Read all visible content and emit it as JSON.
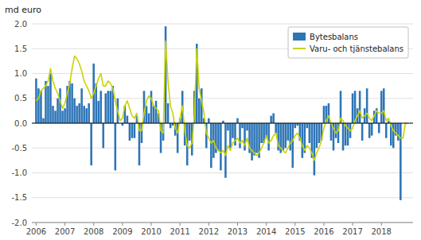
{
  "chart_data": {
    "type": "bar",
    "ylabel": "md euro",
    "x": [
      2006,
      2006.0833333333333,
      2006.1666666666667,
      2006.25,
      2006.3333333333333,
      2006.4166666666667,
      2006.5,
      2006.5833333333333,
      2006.6666666666667,
      2006.75,
      2006.8333333333333,
      2006.9166666666667,
      2007,
      2007.0833333333333,
      2007.1666666666667,
      2007.25,
      2007.3333333333333,
      2007.4166666666667,
      2007.5,
      2007.5833333333333,
      2007.6666666666667,
      2007.75,
      2007.8333333333333,
      2007.9166666666667,
      2008,
      2008.0833333333333,
      2008.1666666666667,
      2008.25,
      2008.3333333333333,
      2008.4166666666667,
      2008.5,
      2008.5833333333333,
      2008.6666666666667,
      2008.75,
      2008.8333333333333,
      2008.9166666666667,
      2009,
      2009.0833333333333,
      2009.1666666666667,
      2009.25,
      2009.3333333333333,
      2009.4166666666667,
      2009.5,
      2009.5833333333333,
      2009.6666666666667,
      2009.75,
      2009.8333333333333,
      2009.9166666666667,
      2010,
      2010.0833333333333,
      2010.1666666666667,
      2010.25,
      2010.3333333333333,
      2010.4166666666667,
      2010.5,
      2010.5833333333333,
      2010.6666666666667,
      2010.75,
      2010.8333333333333,
      2010.9166666666667,
      2011,
      2011.0833333333333,
      2011.1666666666667,
      2011.25,
      2011.3333333333333,
      2011.4166666666667,
      2011.5,
      2011.5833333333333,
      2011.6666666666667,
      2011.75,
      2011.8333333333333,
      2011.9166666666667,
      2012,
      2012.0833333333333,
      2012.1666666666667,
      2012.25,
      2012.3333333333333,
      2012.4166666666667,
      2012.5,
      2012.5833333333333,
      2012.6666666666667,
      2012.75,
      2012.8333333333333,
      2012.9166666666667,
      2013,
      2013.0833333333333,
      2013.1666666666667,
      2013.25,
      2013.3333333333333,
      2013.4166666666667,
      2013.5,
      2013.5833333333333,
      2013.6666666666667,
      2013.75,
      2013.8333333333333,
      2013.9166666666667,
      2014,
      2014.0833333333333,
      2014.1666666666667,
      2014.25,
      2014.3333333333333,
      2014.4166666666667,
      2014.5,
      2014.5833333333333,
      2014.6666666666667,
      2014.75,
      2014.8333333333333,
      2014.9166666666667,
      2015,
      2015.0833333333333,
      2015.1666666666667,
      2015.25,
      2015.3333333333333,
      2015.4166666666667,
      2015.5,
      2015.5833333333333,
      2015.6666666666667,
      2015.75,
      2015.8333333333333,
      2015.9166666666667,
      2016,
      2016.0833333333333,
      2016.1666666666667,
      2016.25,
      2016.3333333333333,
      2016.4166666666667,
      2016.5,
      2016.5833333333333,
      2016.6666666666667,
      2016.75,
      2016.8333333333333,
      2016.9166666666667,
      2017,
      2017.0833333333333,
      2017.1666666666667,
      2017.25,
      2017.3333333333333,
      2017.4166666666667,
      2017.5,
      2017.5833333333333,
      2017.6666666666667,
      2017.75,
      2017.8333333333333,
      2017.9166666666667,
      2018,
      2018.0833333333333,
      2018.1666666666667,
      2018.25,
      2018.3333333333333,
      2018.4166666666667,
      2018.5,
      2018.5833333333333,
      2018.6666666666667,
      2018.75,
      2018.8333333333333,
      2018.9166666666667
    ],
    "series": [
      {
        "name": "Bytesbalans",
        "type": "bar",
        "color": "#2e75b6",
        "values": [
          0.9,
          0.7,
          0.65,
          0.1,
          0.85,
          0.75,
          1.0,
          0.35,
          0.25,
          0.5,
          0.7,
          0.25,
          0.3,
          0.75,
          0.85,
          0.8,
          0.5,
          0.35,
          0.4,
          0.7,
          0.35,
          0.3,
          0.4,
          -0.85,
          1.2,
          0.8,
          0.45,
          0.65,
          -0.5,
          0.6,
          0.65,
          0.65,
          0.75,
          -0.95,
          0.5,
          0.0,
          -0.05,
          0.35,
          0.15,
          -0.35,
          -0.3,
          -0.3,
          0.15,
          -0.85,
          -0.4,
          0.65,
          0.35,
          0.2,
          0.65,
          0.35,
          0.45,
          0.2,
          -0.6,
          -0.35,
          1.95,
          0.4,
          -0.1,
          -0.05,
          -0.25,
          -0.6,
          0.1,
          0.65,
          -0.45,
          -0.85,
          -0.35,
          -0.65,
          0.65,
          1.6,
          0.5,
          0.7,
          0.1,
          -0.5,
          0.1,
          -0.9,
          -0.7,
          -0.6,
          -0.55,
          -0.95,
          0.05,
          -1.1,
          -0.15,
          -0.5,
          -0.3,
          -0.45,
          0.1,
          -0.5,
          -0.1,
          -0.55,
          -0.15,
          -0.6,
          -0.75,
          -0.65,
          -0.6,
          -0.7,
          -0.4,
          -0.4,
          -0.3,
          -0.55,
          0.15,
          0.2,
          -0.2,
          -0.55,
          -0.6,
          -0.55,
          -0.5,
          -0.35,
          -0.55,
          -0.9,
          -0.1,
          -0.05,
          -0.35,
          -0.7,
          -0.6,
          -0.1,
          -0.4,
          -0.7,
          -1.05,
          -0.5,
          -0.4,
          -0.35,
          0.35,
          0.35,
          0.4,
          -0.35,
          -0.55,
          -0.3,
          -0.4,
          0.65,
          -0.55,
          -0.45,
          -0.45,
          -0.3,
          0.6,
          0.65,
          0.3,
          0.65,
          -0.35,
          0.3,
          0.7,
          -0.3,
          -0.25,
          0.25,
          0.3,
          -0.2,
          0.65,
          0.7,
          -0.3,
          0.05,
          -0.45,
          -0.5,
          -0.25,
          -0.35,
          -1.55,
          0.0,
          0.0,
          0.0
        ]
      },
      {
        "name": "Varu- och tjänstebalans",
        "type": "line",
        "color": "#c8d400",
        "values": [
          0.45,
          0.5,
          0.65,
          0.7,
          0.75,
          0.85,
          1.1,
          0.85,
          0.7,
          0.6,
          0.45,
          0.3,
          0.4,
          0.6,
          0.8,
          1.1,
          1.35,
          1.3,
          1.2,
          1.05,
          0.85,
          0.75,
          0.65,
          0.5,
          0.6,
          0.75,
          0.9,
          1.0,
          0.75,
          0.75,
          0.85,
          0.8,
          0.7,
          0.45,
          0.25,
          0.05,
          0.1,
          0.35,
          0.45,
          0.3,
          0.15,
          0.1,
          0.2,
          -0.15,
          -0.15,
          0.2,
          0.45,
          0.55,
          0.5,
          0.35,
          0.3,
          0.25,
          -0.15,
          -0.2,
          1.65,
          0.85,
          0.35,
          0.2,
          -0.1,
          -0.2,
          0.1,
          0.35,
          -0.15,
          -0.45,
          -0.5,
          -0.4,
          0.15,
          1.5,
          0.7,
          0.45,
          0.2,
          -0.2,
          -0.3,
          -0.4,
          -0.35,
          -0.5,
          -0.55,
          -0.6,
          -0.55,
          -0.65,
          -0.45,
          -0.55,
          -0.4,
          -0.35,
          -0.3,
          -0.4,
          -0.35,
          -0.45,
          -0.3,
          -0.5,
          -0.55,
          -0.6,
          -0.65,
          -0.6,
          -0.5,
          -0.4,
          -0.25,
          -0.4,
          -0.35,
          -0.25,
          -0.2,
          -0.45,
          -0.5,
          -0.55,
          -0.6,
          -0.5,
          -0.4,
          -0.35,
          -0.25,
          -0.2,
          -0.3,
          -0.45,
          -0.55,
          -0.45,
          -0.5,
          -0.6,
          -0.75,
          -0.6,
          -0.5,
          -0.35,
          -0.1,
          0.05,
          0.15,
          0.0,
          -0.1,
          -0.2,
          -0.15,
          0.1,
          0.05,
          -0.05,
          -0.1,
          -0.15,
          -0.1,
          0.05,
          0.15,
          0.25,
          0.1,
          0.15,
          0.2,
          0.1,
          0.05,
          0.15,
          0.25,
          0.2,
          0.2,
          0.25,
          0.05,
          0.1,
          -0.05,
          -0.15,
          -0.2,
          -0.25,
          -0.3,
          -0.3,
          0.0,
          0.0
        ]
      }
    ],
    "xlim": [
      2005.85,
      2019.1
    ],
    "xticks": [
      2006,
      2007,
      2008,
      2009,
      2010,
      2011,
      2012,
      2013,
      2014,
      2015,
      2016,
      2017,
      2018
    ],
    "ylim": [
      -2.0,
      2.0
    ],
    "yticks": [
      {
        "value": -2.0,
        "label": "-2.0"
      },
      -1.5,
      {
        "value": -1.0,
        "label": "-1.0"
      },
      -0.5,
      {
        "value": 0.0,
        "label": "0.0"
      },
      0.5,
      {
        "value": 1.0,
        "label": "1.0"
      },
      1.5,
      {
        "value": 2.0,
        "label": "2.0"
      }
    ],
    "grid": true,
    "legend": "upper-right"
  }
}
